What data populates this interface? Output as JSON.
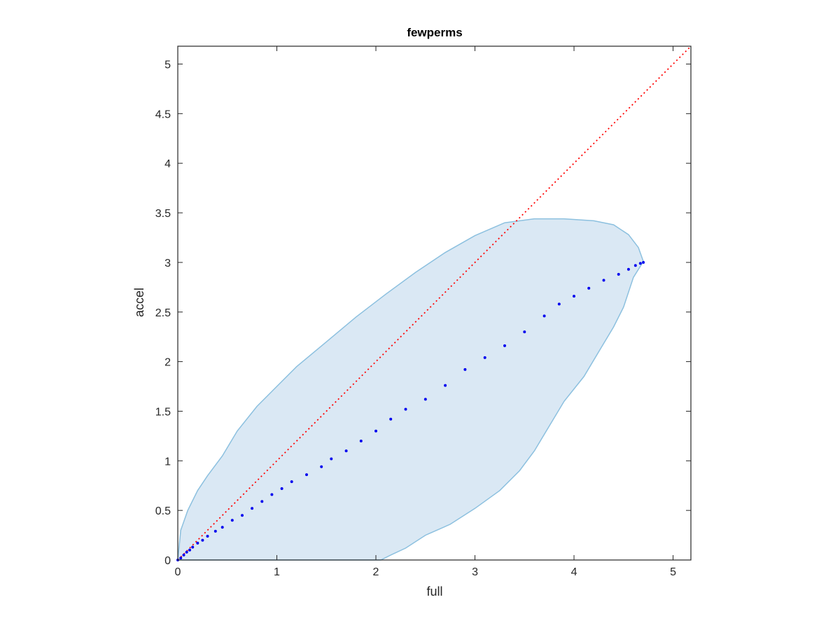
{
  "chart_data": {
    "type": "scatter",
    "title": "fewperms",
    "xlabel": "full",
    "ylabel": "accel",
    "xlim": [
      0,
      5.18
    ],
    "ylim": [
      0,
      5.18
    ],
    "xticks": [
      "0",
      "1",
      "2",
      "3",
      "4",
      "5"
    ],
    "xtick_values": [
      0,
      1,
      2,
      3,
      4,
      5
    ],
    "yticks": [
      "0",
      "0.5",
      "1",
      "1.5",
      "2",
      "2.5",
      "3",
      "3.5",
      "4",
      "4.5",
      "5"
    ],
    "ytick_values": [
      0,
      0.5,
      1,
      1.5,
      2,
      2.5,
      3,
      3.5,
      4,
      4.5,
      5
    ],
    "grid": false,
    "colors": {
      "band_fill": "#dae8f4",
      "band_edge": "#8cc0df",
      "points": "#0000ee",
      "identity_line": "#ff0000",
      "axes": "#262626"
    },
    "identity_line": {
      "x": [
        0,
        5.18
      ],
      "y": [
        0,
        5.18
      ],
      "style": "dotted"
    },
    "band": {
      "upper": [
        [
          0,
          0
        ],
        [
          0.03,
          0.3
        ],
        [
          0.1,
          0.5
        ],
        [
          0.2,
          0.7
        ],
        [
          0.3,
          0.85
        ],
        [
          0.45,
          1.05
        ],
        [
          0.6,
          1.3
        ],
        [
          0.8,
          1.55
        ],
        [
          1.0,
          1.75
        ],
        [
          1.2,
          1.95
        ],
        [
          1.5,
          2.2
        ],
        [
          1.8,
          2.45
        ],
        [
          2.1,
          2.68
        ],
        [
          2.4,
          2.9
        ],
        [
          2.7,
          3.1
        ],
        [
          3.0,
          3.27
        ],
        [
          3.3,
          3.4
        ],
        [
          3.6,
          3.44
        ],
        [
          3.9,
          3.44
        ],
        [
          4.2,
          3.42
        ],
        [
          4.4,
          3.38
        ],
        [
          4.55,
          3.28
        ],
        [
          4.65,
          3.15
        ],
        [
          4.7,
          3.01
        ]
      ],
      "lower": [
        [
          4.7,
          3.01
        ],
        [
          4.6,
          2.85
        ],
        [
          4.5,
          2.55
        ],
        [
          4.4,
          2.35
        ],
        [
          4.25,
          2.1
        ],
        [
          4.1,
          1.85
        ],
        [
          3.9,
          1.6
        ],
        [
          3.75,
          1.35
        ],
        [
          3.6,
          1.1
        ],
        [
          3.45,
          0.9
        ],
        [
          3.25,
          0.7
        ],
        [
          3.0,
          0.52
        ],
        [
          2.75,
          0.36
        ],
        [
          2.5,
          0.25
        ],
        [
          2.3,
          0.12
        ],
        [
          2.15,
          0.05
        ],
        [
          2.05,
          0
        ]
      ]
    },
    "series": [
      {
        "x": [
          0.0,
          0.03,
          0.06,
          0.09,
          0.12,
          0.15,
          0.2,
          0.25,
          0.3,
          0.38,
          0.45,
          0.55,
          0.65,
          0.75,
          0.85,
          0.95,
          1.05,
          1.15,
          1.3,
          1.45,
          1.55,
          1.7,
          1.85,
          2.0,
          2.15,
          2.3,
          2.5,
          2.7,
          2.9,
          3.1,
          3.3,
          3.5,
          3.7,
          3.85,
          4.0,
          4.15,
          4.3,
          4.45,
          4.55,
          4.62,
          4.67,
          4.7
        ],
        "y": [
          0.0,
          0.02,
          0.05,
          0.08,
          0.1,
          0.13,
          0.17,
          0.2,
          0.24,
          0.29,
          0.33,
          0.4,
          0.45,
          0.52,
          0.59,
          0.66,
          0.72,
          0.79,
          0.86,
          0.94,
          1.02,
          1.1,
          1.2,
          1.3,
          1.42,
          1.52,
          1.62,
          1.76,
          1.92,
          2.04,
          2.16,
          2.3,
          2.46,
          2.58,
          2.66,
          2.74,
          2.82,
          2.88,
          2.93,
          2.97,
          2.99,
          3.0
        ]
      }
    ]
  }
}
